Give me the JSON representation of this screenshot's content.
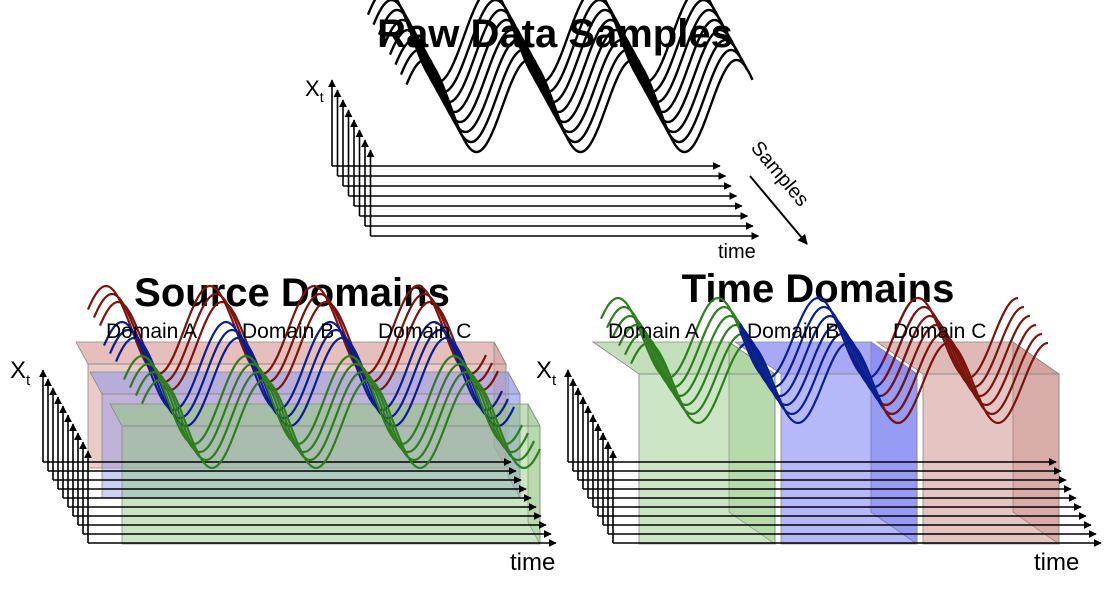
{
  "raw_panel": {
    "title": "Raw Data Samples",
    "y_label_base": "X",
    "y_label_sub": "t",
    "x_label": "time",
    "depth_label": "Samples",
    "line_color": "#000000"
  },
  "source_panel": {
    "title": "Source Domains",
    "y_label_base": "X",
    "y_label_sub": "t",
    "x_label": "time",
    "domains": [
      {
        "label": "Domain A",
        "color": "#2e7d1f",
        "fill": "#8fc57f"
      },
      {
        "label": "Domain B",
        "color": "#0a1f8f",
        "fill": "#8d96e8"
      },
      {
        "label": "Domain C",
        "color": "#7a140c",
        "fill": "#d28b86"
      }
    ]
  },
  "time_panel": {
    "title": "Time Domains",
    "y_label_base": "X",
    "y_label_sub": "t",
    "x_label": "time",
    "domains": [
      {
        "label": "Domain A",
        "color": "#2e7d1f",
        "fill": "#8fc57f"
      },
      {
        "label": "Domain B",
        "color": "#0a1f8f",
        "fill": "#5e63f2"
      },
      {
        "label": "Domain C",
        "color": "#7a140c",
        "fill": "#c47f78"
      }
    ]
  }
}
